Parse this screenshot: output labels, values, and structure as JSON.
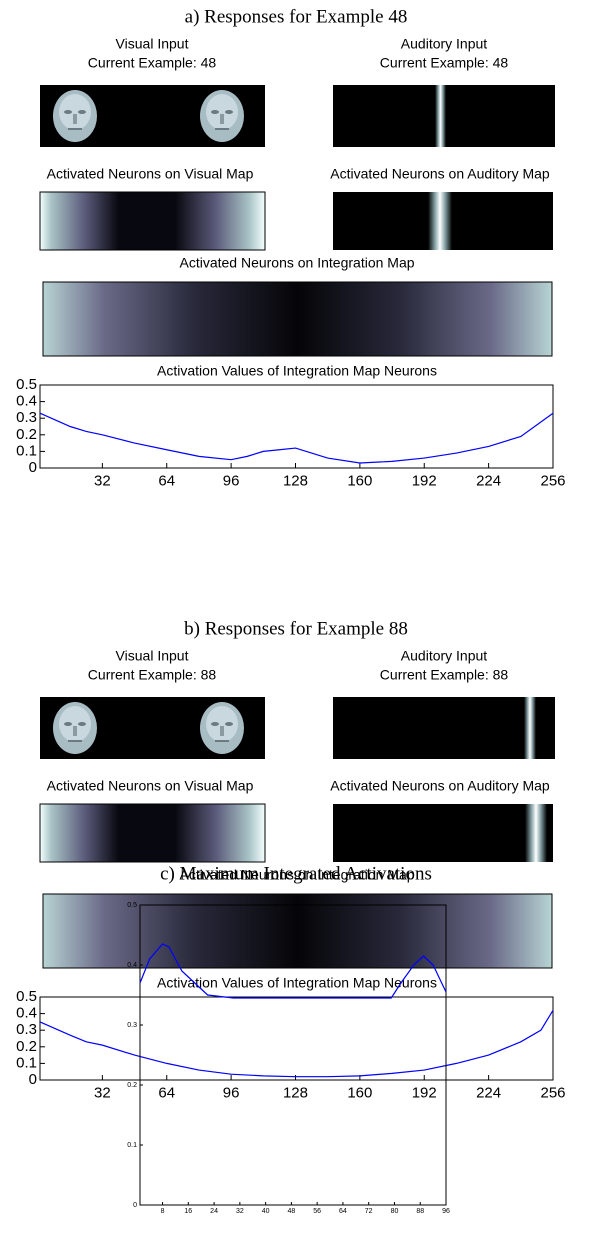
{
  "chart_data": [
    {
      "type": "line",
      "title": "a) Responses for Example 48",
      "subtitle": "Activation Values of Integration Map Neurons",
      "x": [
        1,
        16,
        24,
        32,
        48,
        64,
        80,
        96,
        104,
        112,
        120,
        128,
        136,
        144,
        160,
        176,
        192,
        208,
        224,
        240,
        256
      ],
      "values": [
        0.33,
        0.25,
        0.22,
        0.2,
        0.15,
        0.11,
        0.07,
        0.05,
        0.07,
        0.1,
        0.11,
        0.12,
        0.09,
        0.06,
        0.03,
        0.04,
        0.06,
        0.09,
        0.13,
        0.19,
        0.33
      ],
      "color": "#0000ff",
      "xlim": [
        1,
        256
      ],
      "xticks": [
        32,
        64,
        96,
        128,
        160,
        192,
        224,
        256
      ],
      "ylim": [
        0,
        0.5
      ],
      "yticks": [
        0,
        0.1,
        0.2,
        0.3,
        0.4,
        0.5
      ]
    },
    {
      "type": "line",
      "title": "b) Responses for Example 88",
      "subtitle": "Activation Values of Integration Map Neurons",
      "x": [
        1,
        16,
        24,
        32,
        48,
        64,
        80,
        96,
        112,
        128,
        144,
        160,
        176,
        192,
        208,
        224,
        240,
        250,
        256
      ],
      "values": [
        0.35,
        0.27,
        0.23,
        0.21,
        0.15,
        0.1,
        0.06,
        0.035,
        0.025,
        0.02,
        0.02,
        0.025,
        0.04,
        0.06,
        0.1,
        0.15,
        0.23,
        0.3,
        0.42
      ],
      "color": "#0000ff",
      "xlim": [
        1,
        256
      ],
      "xticks": [
        32,
        64,
        96,
        128,
        160,
        192,
        224,
        256
      ],
      "ylim": [
        0,
        0.5
      ],
      "yticks": [
        0,
        0.1,
        0.2,
        0.3,
        0.4,
        0.5
      ]
    },
    {
      "type": "line",
      "title": "c) Maximum Integrated Activations",
      "x": [
        1,
        4,
        8,
        10,
        14,
        18,
        22,
        30,
        50,
        70,
        79,
        82,
        86,
        89,
        92,
        96
      ],
      "values": [
        0.37,
        0.41,
        0.435,
        0.43,
        0.39,
        0.37,
        0.35,
        0.345,
        0.345,
        0.345,
        0.345,
        0.37,
        0.4,
        0.415,
        0.4,
        0.355
      ],
      "color": "#0000ff",
      "xlim": [
        1,
        96
      ],
      "xticks": [
        8,
        16,
        24,
        32,
        40,
        48,
        56,
        64,
        72,
        80,
        88,
        96
      ],
      "ylim": [
        0,
        0.5
      ],
      "yticks": [
        0,
        0.1,
        0.2,
        0.3,
        0.4,
        0.5
      ]
    }
  ],
  "panels": [
    {
      "visual_title": "Visual Input",
      "visual_example": "Current Example: 48",
      "auditory_title": "Auditory Input",
      "auditory_example": "Current Example: 48",
      "visual_map_title": "Activated Neurons on Visual Map",
      "auditory_map_title": "Activated Neurons on Auditory Map",
      "integration_map_title": "Activated Neurons on Integration Map"
    },
    {
      "visual_title": "Visual Input",
      "visual_example": "Current Example: 88",
      "auditory_title": "Auditory Input",
      "auditory_example": "Current Example: 88",
      "visual_map_title": "Activated Neurons on Visual Map",
      "auditory_map_title": "Activated Neurons on Auditory Map",
      "integration_map_title": "Activated Neurons on Integration Map"
    }
  ]
}
